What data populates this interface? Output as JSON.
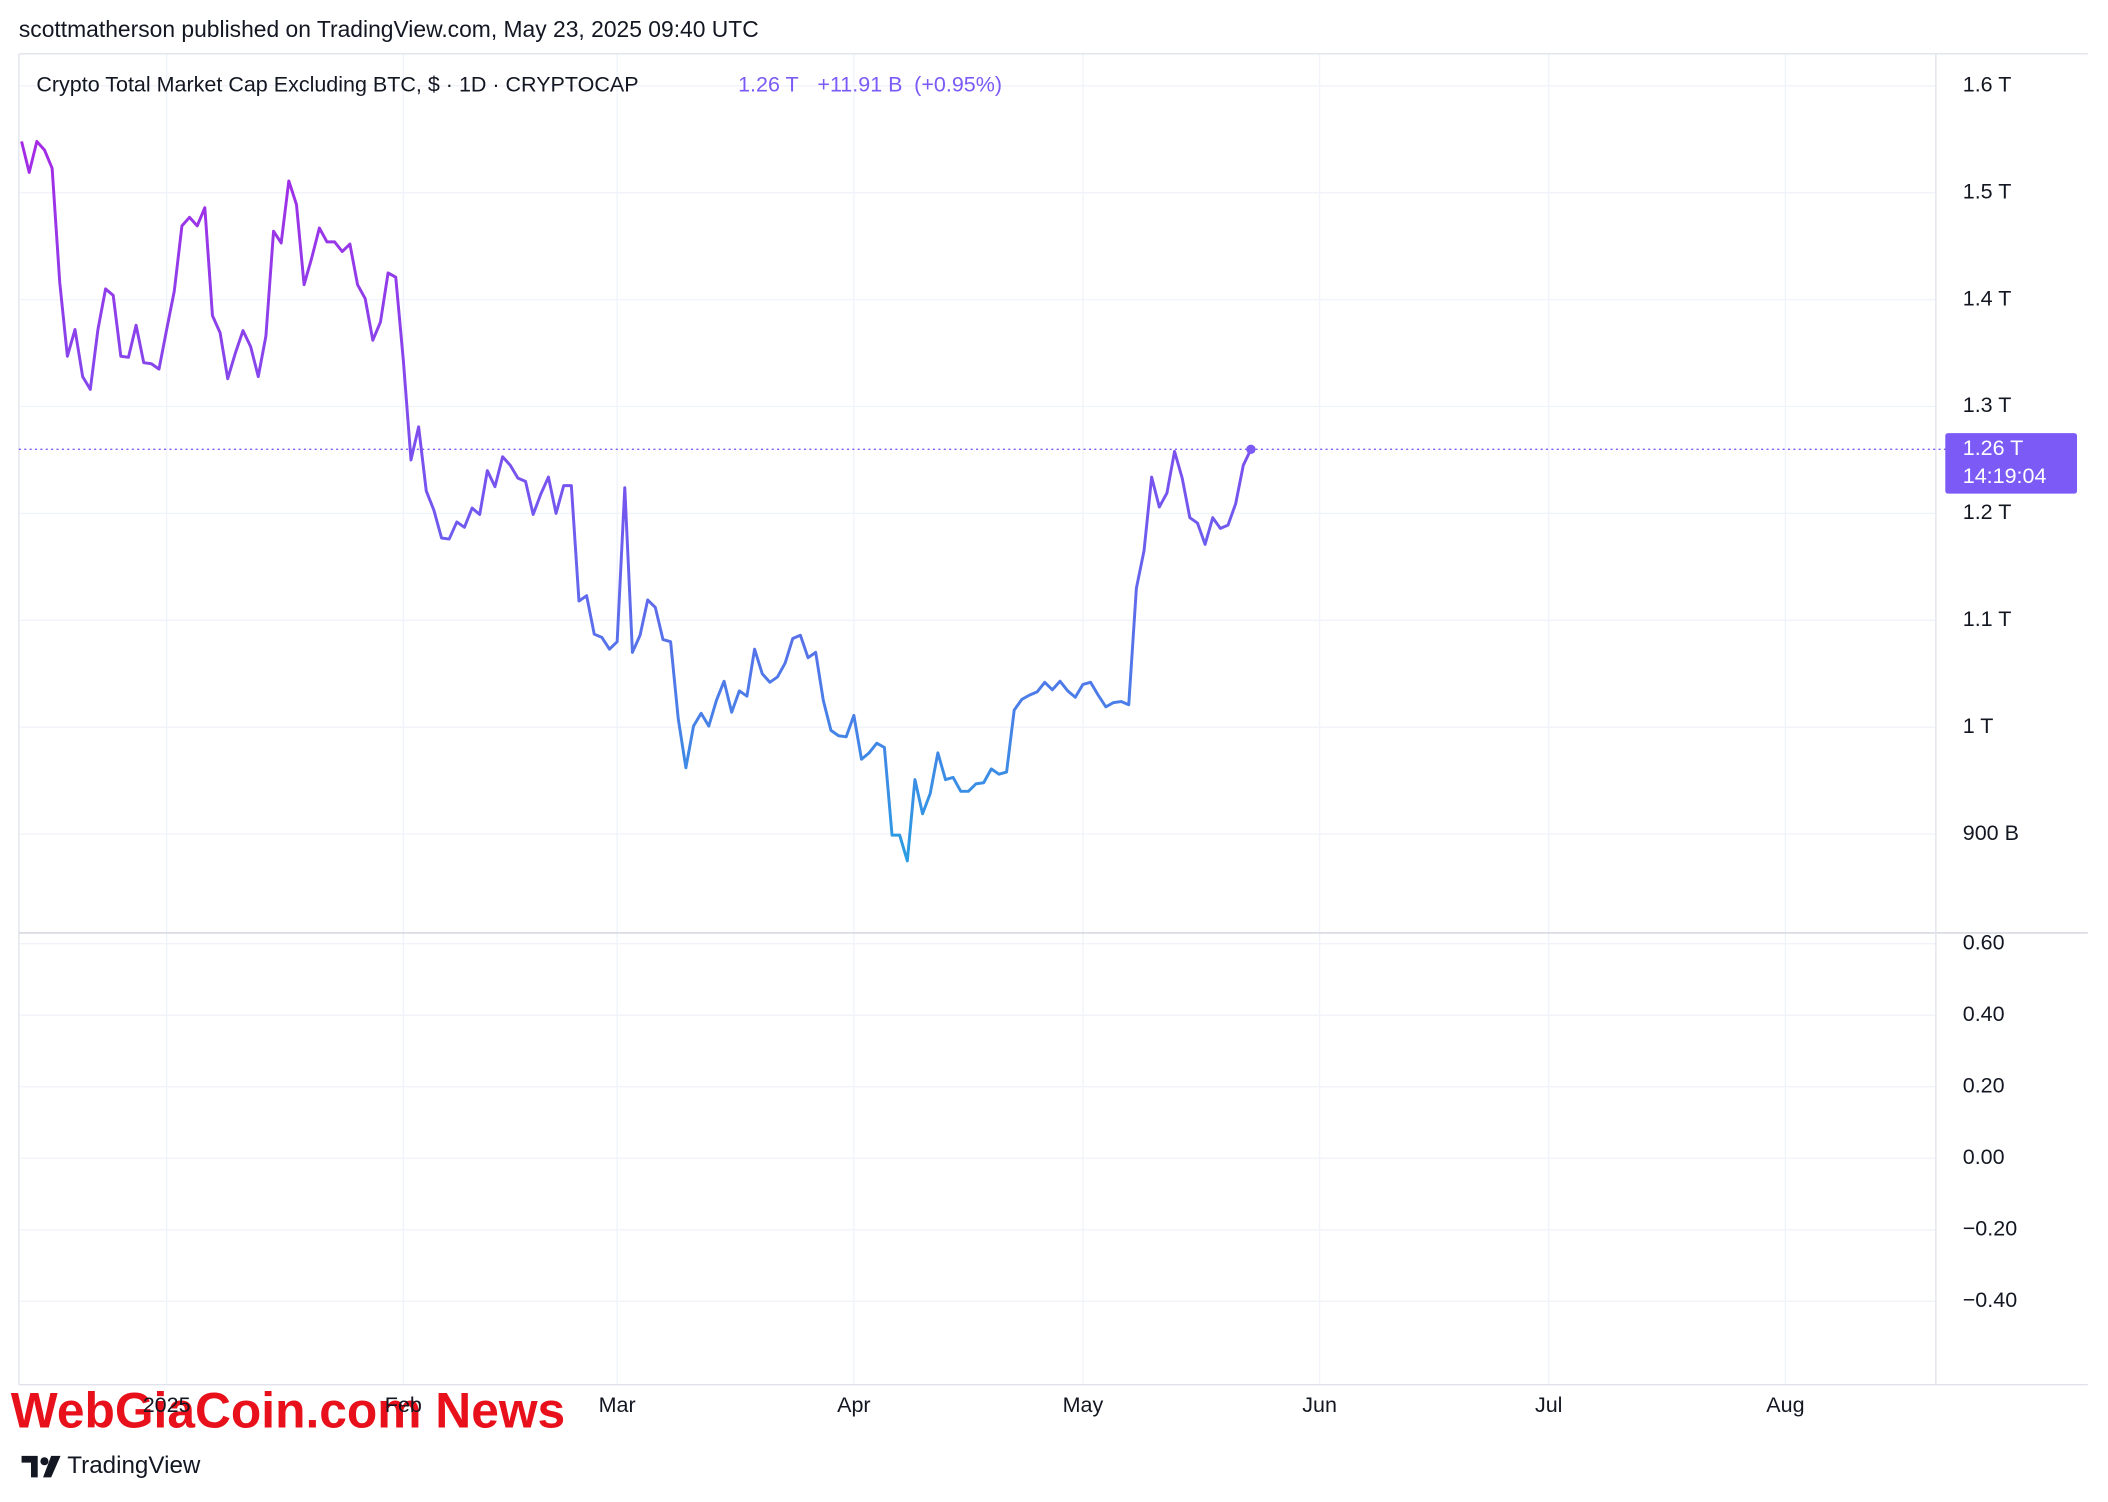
{
  "header": "scottmatherson published on TradingView.com, May 23, 2025 09:40 UTC",
  "watermark": "WebGiaCoin.com News",
  "brand": "TradingView",
  "chart_data": {
    "type": "line",
    "title": "Crypto Total Market Cap Excluding BTC, $ · 1D · CRYPTOCAP",
    "last_price_label": "1.26 T",
    "change": "+11.91 B",
    "change_pct": "(+0.95%)",
    "countdown": "14:19:04",
    "legend_color": "#7b5af5",
    "gradient_colors": [
      "#a52be6",
      "#7556ef",
      "#2a9de2"
    ],
    "categories": [
      null,
      null,
      null,
      null,
      null,
      null,
      null,
      null,
      null,
      null,
      null,
      null,
      null,
      null,
      null,
      null,
      null,
      null,
      null,
      "2025",
      null,
      null,
      null,
      null,
      null,
      null,
      null,
      null,
      null,
      null,
      null,
      null,
      null,
      null,
      null,
      null,
      null,
      null,
      null,
      null,
      null,
      null,
      null,
      null,
      null,
      null,
      null,
      null,
      null,
      null,
      "Feb",
      null,
      null,
      null,
      null,
      null,
      null,
      null,
      null,
      null,
      null,
      null,
      null,
      null,
      null,
      null,
      null,
      null,
      null,
      null,
      null,
      null,
      null,
      null,
      null,
      null,
      null,
      null,
      "Mar",
      null,
      null,
      null,
      null,
      null,
      null,
      null,
      null,
      null,
      null,
      null,
      null,
      null,
      null,
      null,
      null,
      null,
      null,
      null,
      null,
      null,
      null,
      null,
      null,
      null,
      null,
      null,
      null,
      null,
      null,
      "Apr",
      null,
      null,
      null,
      null,
      null,
      null,
      null,
      null,
      null,
      null,
      null,
      null,
      null,
      null,
      null,
      null,
      null,
      null,
      null,
      null,
      null,
      null,
      null,
      null,
      null,
      null,
      null,
      null,
      null,
      "May",
      null,
      null,
      null,
      null,
      null,
      null,
      null,
      null,
      null,
      null,
      null,
      null,
      null,
      null,
      null,
      null,
      null,
      null,
      null,
      null,
      null,
      null,
      null,
      null,
      null,
      null,
      null,
      null,
      null,
      null,
      "Jun",
      null,
      null,
      null,
      null,
      null,
      null,
      null,
      null,
      null,
      null,
      null,
      null,
      null,
      null,
      null,
      null,
      null,
      null,
      null,
      null,
      null,
      null,
      null,
      null,
      null,
      null,
      null,
      null,
      null,
      "Jul",
      null,
      null,
      null,
      null,
      null,
      null,
      null,
      null,
      null,
      null,
      null,
      null,
      null,
      null,
      null,
      null,
      null,
      null,
      null,
      null,
      null,
      null,
      null,
      null,
      null,
      null,
      null,
      null,
      null,
      null,
      "Aug",
      null,
      null,
      null,
      null,
      null,
      null,
      null,
      null,
      null,
      null,
      null,
      null,
      null,
      null,
      null,
      null,
      null,
      null,
      null
    ],
    "values": [
      1.548,
      1.519,
      1.548,
      1.54,
      1.523,
      1.416,
      1.347,
      1.372,
      1.328,
      1.316,
      1.372,
      1.41,
      1.404,
      1.347,
      1.346,
      1.376,
      1.341,
      1.34,
      1.335,
      1.372,
      1.408,
      1.469,
      1.477,
      1.469,
      1.486,
      1.385,
      1.369,
      1.326,
      1.35,
      1.371,
      1.356,
      1.328,
      1.366,
      1.464,
      1.453,
      1.511,
      1.489,
      1.414,
      1.439,
      1.467,
      1.454,
      1.454,
      1.445,
      1.452,
      1.414,
      1.401,
      1.362,
      1.379,
      1.425,
      1.421,
      1.343,
      1.25,
      1.281,
      1.221,
      1.203,
      1.177,
      1.176,
      1.192,
      1.187,
      1.205,
      1.199,
      1.24,
      1.225,
      1.253,
      1.245,
      1.233,
      1.23,
      1.199,
      1.218,
      1.234,
      1.2,
      1.226,
      1.226,
      1.118,
      1.123,
      1.087,
      1.084,
      1.073,
      1.08,
      1.224,
      1.07,
      1.086,
      1.119,
      1.112,
      1.082,
      1.08,
      1.008,
      0.962,
      1.001,
      1.013,
      1.001,
      1.025,
      1.043,
      1.014,
      1.034,
      1.029,
      1.073,
      1.05,
      1.042,
      1.047,
      1.06,
      1.083,
      1.086,
      1.065,
      1.07,
      1.025,
      0.997,
      0.992,
      0.991,
      1.011,
      0.97,
      0.976,
      0.985,
      0.981,
      0.899,
      0.899,
      0.875,
      0.951,
      0.919,
      0.938,
      0.976,
      0.951,
      0.953,
      0.94,
      0.94,
      0.947,
      0.948,
      0.961,
      0.956,
      0.958,
      1.016,
      1.026,
      1.03,
      1.033,
      1.042,
      1.035,
      1.043,
      1.034,
      1.028,
      1.04,
      1.042,
      1.03,
      1.019,
      1.023,
      1.024,
      1.021,
      1.13,
      1.165,
      1.234,
      1.206,
      1.219,
      1.258,
      1.233,
      1.196,
      1.191,
      1.171,
      1.196,
      1.186,
      1.189,
      1.209,
      1.245,
      1.26,
      null,
      null,
      null,
      null,
      null,
      null,
      null,
      null,
      null,
      null,
      null,
      null,
      null,
      null,
      null,
      null,
      null,
      null,
      null,
      null,
      null,
      null,
      null,
      null,
      null,
      null,
      null,
      null,
      null,
      null,
      null,
      null,
      null,
      null,
      null,
      null,
      null,
      null,
      null,
      null,
      null,
      null,
      null,
      null,
      null,
      null,
      null,
      null,
      null,
      null,
      null,
      null,
      null,
      null,
      null,
      null,
      null,
      null,
      null,
      null,
      null,
      null,
      null,
      null,
      null,
      null,
      null,
      null,
      null,
      null,
      null,
      null,
      null,
      null,
      null,
      null,
      null,
      null,
      null,
      null,
      null,
      null,
      null,
      null,
      null,
      null,
      null,
      null,
      null
    ],
    "ylim": [
      0.8075,
      1.63
    ],
    "yticks": [
      {
        "value": 0.9,
        "label": "900 B"
      },
      {
        "value": 1,
        "label": "1 T"
      },
      {
        "value": 1.1,
        "label": "1.1 T"
      },
      {
        "value": 1.2,
        "label": "1.2 T"
      },
      {
        "value": 1.3,
        "label": "1.3 T"
      },
      {
        "value": 1.4,
        "label": "1.4 T"
      },
      {
        "value": 1.5,
        "label": "1.5 T"
      },
      {
        "value": 1.6,
        "label": "1.6 T"
      }
    ],
    "grid": true,
    "lower_pane": {
      "ylim": [
        -0.633,
        0.63
      ],
      "yticks": [
        {
          "value": 0.6,
          "label": "0.60"
        },
        {
          "value": 0.4,
          "label": "0.40"
        },
        {
          "value": 0.2,
          "label": "0.20"
        },
        {
          "value": 0,
          "label": "0.00"
        },
        {
          "value": -0.2,
          "label": "−0.20"
        },
        {
          "value": -0.4,
          "label": "−0.40"
        }
      ]
    }
  }
}
